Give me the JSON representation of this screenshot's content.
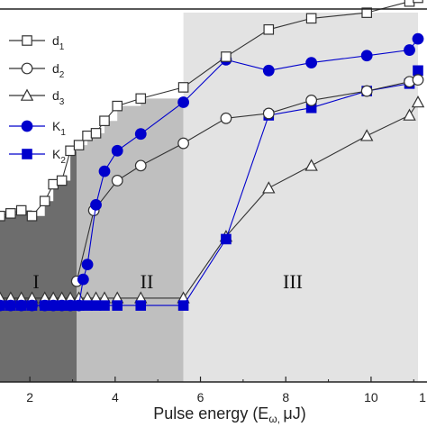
{
  "chart_data": {
    "type": "line",
    "xlabel": "Pulse energy (E",
    "xlabel_sub": "ω, ",
    "xlabel_end": "μJ)",
    "xlim": [
      1.3,
      11.1
    ],
    "ylim": [
      0,
      1.0
    ],
    "ylabel": "",
    "x_ticks": [
      2,
      4,
      6,
      8,
      10
    ],
    "x_tick_labels": [
      "2",
      "4",
      "6",
      "8",
      "10"
    ],
    "last_tick_label": "1",
    "grid": false,
    "legend_position": "top-left",
    "regions": [
      {
        "label": "I",
        "x_start": 1.3,
        "x_end": 3.1,
        "color": "#6d6d6d"
      },
      {
        "label": "II",
        "x_start": 3.1,
        "x_end": 5.6,
        "color": "#bfbfbf"
      },
      {
        "label": "III",
        "x_start": 5.6,
        "x_end": 11.1,
        "color": "#e3e3e3"
      }
    ],
    "series": [
      {
        "name": "d",
        "sub": "1",
        "marker": "square-open",
        "color": "#333333",
        "x": [
          1.3,
          1.55,
          1.8,
          2.05,
          2.35,
          2.55,
          2.75,
          2.95,
          3.15,
          3.35,
          3.55,
          3.75,
          4.05,
          4.6,
          5.6,
          6.6,
          7.6,
          8.6,
          9.9,
          10.9,
          11.1
        ],
        "y": [
          0.445,
          0.452,
          0.46,
          0.445,
          0.485,
          0.53,
          0.54,
          0.62,
          0.635,
          0.66,
          0.667,
          0.7,
          0.74,
          0.76,
          0.79,
          0.872,
          0.945,
          0.975,
          0.99,
          1.02,
          1.03
        ]
      },
      {
        "name": "d",
        "sub": "2",
        "marker": "circle-open",
        "color": "#333333",
        "x": [
          3.1,
          3.5,
          4.05,
          4.6,
          5.6,
          6.6,
          7.6,
          8.6,
          9.9,
          10.9,
          11.1
        ],
        "y": [
          0.27,
          0.46,
          0.54,
          0.58,
          0.64,
          0.707,
          0.72,
          0.755,
          0.78,
          0.805,
          0.81
        ]
      },
      {
        "name": "d",
        "sub": "3",
        "marker": "triangle-open",
        "color": "#333333",
        "x": [
          1.3,
          1.55,
          1.8,
          2.05,
          2.35,
          2.55,
          2.75,
          2.95,
          3.15,
          3.35,
          3.55,
          3.75,
          4.05,
          4.6,
          5.6,
          6.6,
          7.6,
          8.6,
          9.9,
          10.9,
          11.1
        ],
        "y": [
          0.225,
          0.225,
          0.225,
          0.225,
          0.225,
          0.225,
          0.225,
          0.225,
          0.225,
          0.225,
          0.225,
          0.225,
          0.225,
          0.225,
          0.225,
          0.39,
          0.52,
          0.58,
          0.66,
          0.715,
          0.75
        ]
      },
      {
        "name": "K",
        "sub": "1",
        "marker": "circle-filled",
        "color": "#0000cc",
        "x": [
          1.3,
          1.55,
          1.8,
          2.05,
          2.35,
          2.55,
          2.75,
          2.95,
          3.15,
          3.25,
          3.35,
          3.55,
          3.75,
          4.05,
          4.6,
          5.6,
          6.6,
          7.6,
          8.6,
          9.9,
          10.9,
          11.1
        ],
        "y": [
          0.205,
          0.205,
          0.205,
          0.205,
          0.205,
          0.205,
          0.205,
          0.205,
          0.205,
          0.275,
          0.315,
          0.475,
          0.565,
          0.62,
          0.665,
          0.75,
          0.864,
          0.835,
          0.856,
          0.875,
          0.89,
          0.92
        ]
      },
      {
        "name": "K",
        "sub": "2",
        "marker": "square-filled",
        "color": "#0000cc",
        "x": [
          1.3,
          1.55,
          1.8,
          2.05,
          2.35,
          2.55,
          2.75,
          2.95,
          3.15,
          3.35,
          3.55,
          3.75,
          4.05,
          4.6,
          5.6,
          6.6,
          7.6,
          8.6,
          9.9,
          10.9,
          11.1
        ],
        "y": [
          0.205,
          0.205,
          0.205,
          0.205,
          0.205,
          0.205,
          0.205,
          0.205,
          0.205,
          0.205,
          0.205,
          0.205,
          0.205,
          0.205,
          0.205,
          0.383,
          0.715,
          0.735,
          0.78,
          0.8,
          0.835
        ]
      }
    ]
  }
}
